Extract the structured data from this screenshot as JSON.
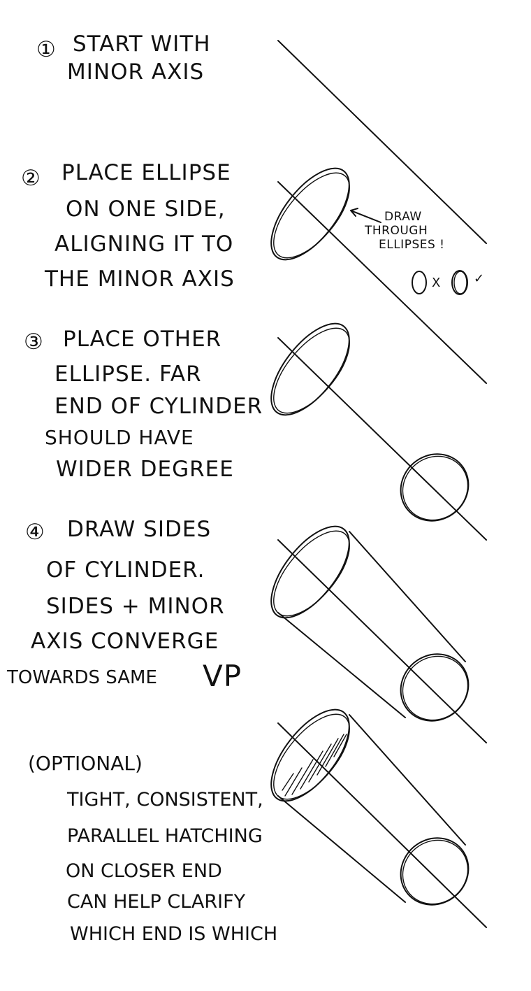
{
  "steps": [
    {
      "number": "①",
      "lines": [
        "START WITH",
        "MINOR AXIS"
      ]
    },
    {
      "number": "②",
      "lines": [
        "PLACE ELLIPSE",
        "ON ONE SIDE,",
        "ALIGNING IT TO",
        "THE MINOR AXIS"
      ]
    },
    {
      "number": "③",
      "lines": [
        "PLACE OTHER",
        "ELLIPSE. FAR",
        "END OF CYLINDER",
        "SHOULD HAVE",
        "WIDER DEGREE"
      ]
    },
    {
      "number": "④",
      "lines": [
        "DRAW SIDES",
        "OF CYLINDER.",
        "SIDES + MINOR",
        "AXIS CONVERGE",
        "TOWARDS SAME"
      ],
      "vp": "VP"
    }
  ],
  "optional": {
    "label": "(OPTIONAL)",
    "lines": [
      "TIGHT, CONSISTENT,",
      "PARALLEL HATCHING",
      "ON CLOSER END",
      "CAN HELP CLARIFY",
      "WHICH END IS WHICH"
    ]
  },
  "note": {
    "lines": [
      "DRAW",
      "THROUGH",
      "ELLIPSES !"
    ],
    "wrong_mark": "x",
    "right_mark": "✓"
  }
}
